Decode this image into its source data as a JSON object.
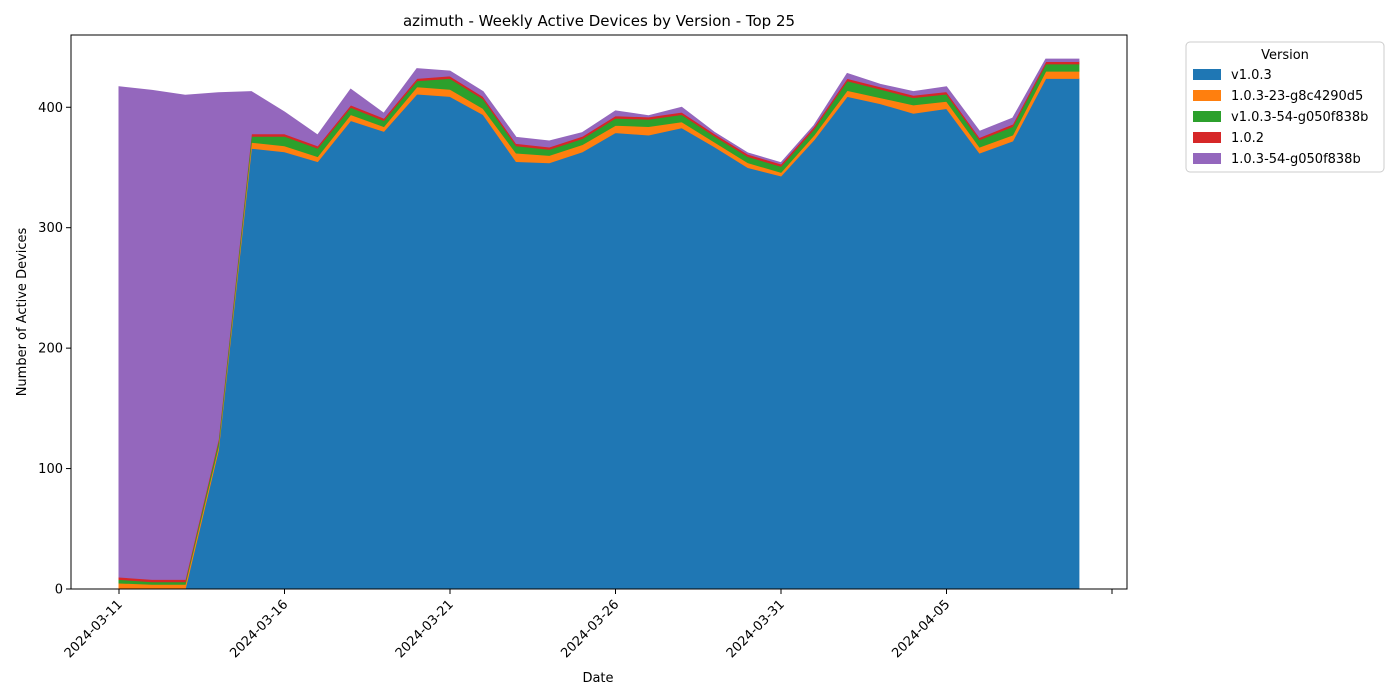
{
  "chart_data": {
    "type": "area",
    "stacked": true,
    "title": "azimuth - Weekly Active Devices by Version - Top 25",
    "xlabel": "Date",
    "ylabel": "Number of Active Devices",
    "ylim": [
      0,
      460
    ],
    "y_ticks": [
      0,
      100,
      200,
      300,
      400
    ],
    "x_ticks": [
      "2024-03-11",
      "2024-03-16",
      "2024-03-21",
      "2024-03-26",
      "2024-03-31",
      "2024-04-05"
    ],
    "x_tick_rotation_deg": 45,
    "x": [
      "2024-03-11",
      "2024-03-12",
      "2024-03-13",
      "2024-03-14",
      "2024-03-15",
      "2024-03-16",
      "2024-03-17",
      "2024-03-18",
      "2024-03-19",
      "2024-03-20",
      "2024-03-21",
      "2024-03-22",
      "2024-03-23",
      "2024-03-24",
      "2024-03-25",
      "2024-03-26",
      "2024-03-27",
      "2024-03-28",
      "2024-03-29",
      "2024-03-30",
      "2024-03-31",
      "2024-04-01",
      "2024-04-02",
      "2024-04-03",
      "2024-04-04",
      "2024-04-05",
      "2024-04-06",
      "2024-04-07",
      "2024-04-08",
      "2024-04-09"
    ],
    "legend": {
      "title": "Version",
      "placement": "outside-right"
    },
    "grid": false,
    "series": [
      {
        "name": "v1.0.3",
        "color": "#1f77b4",
        "values": [
          0,
          0,
          0,
          115,
          366,
          363,
          355,
          389,
          380,
          411,
          409,
          394,
          355,
          354,
          363,
          379,
          377,
          383,
          367,
          350,
          343,
          373,
          409,
          403,
          395,
          399,
          362,
          372,
          424,
          424
        ]
      },
      {
        "name": "1.0.3-23-g8c4290d5",
        "color": "#ff7f0e",
        "values": [
          5,
          4,
          4,
          3,
          5,
          5,
          4,
          5,
          4,
          6,
          6,
          5,
          7,
          6,
          6,
          6,
          7,
          5,
          4,
          4,
          3,
          4,
          5,
          5,
          7,
          6,
          5,
          5,
          6,
          6
        ]
      },
      {
        "name": "v1.0.3-54-g050f838b",
        "color": "#2ca02c",
        "values": [
          3,
          2,
          2,
          4,
          5,
          8,
          7,
          6,
          5,
          5,
          9,
          8,
          6,
          5,
          5,
          6,
          6,
          6,
          5,
          5,
          5,
          5,
          8,
          7,
          6,
          6,
          6,
          7,
          6,
          6
        ]
      },
      {
        "name": "1.0.2",
        "color": "#d62728",
        "values": [
          2,
          2,
          2,
          2,
          2,
          2,
          2,
          2,
          2,
          2,
          2,
          2,
          2,
          2,
          2,
          2,
          2,
          2,
          2,
          2,
          2,
          2,
          2,
          2,
          2,
          2,
          2,
          2,
          2,
          2
        ]
      },
      {
        "name": "1.0.3-54-g050f838b",
        "color": "#9467bd",
        "values": [
          407,
          406,
          402,
          288,
          35,
          18,
          9,
          13,
          4,
          8,
          4,
          4,
          5,
          5,
          3,
          4,
          1,
          4,
          1,
          1,
          1,
          1,
          4,
          2,
          3,
          4,
          5,
          5,
          2,
          2
        ]
      }
    ]
  }
}
